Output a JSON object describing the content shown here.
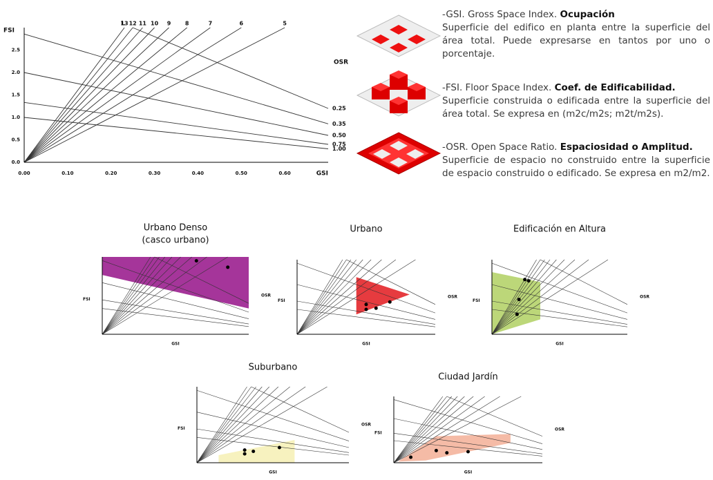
{
  "chart_data": [
    {
      "type": "spacemate",
      "x_label": "GSI",
      "y_label": "FSI",
      "l_label": "L",
      "osr_label": "OSR",
      "l_values": [
        13,
        12,
        11,
        10,
        9,
        8,
        7,
        6,
        5
      ],
      "osr_values": [
        {
          "value": 0.25,
          "label": "0.25"
        },
        {
          "value": 0.35,
          "label": "0.35"
        },
        {
          "value": 0.5,
          "label": "0.50"
        },
        {
          "value": 0.75,
          "label": "0.75"
        },
        {
          "value": 1,
          "label": "1.00"
        }
      ],
      "xlim": [
        0,
        0.7
      ],
      "ylim": [
        0,
        3
      ],
      "xticks": [
        {
          "value": 0,
          "label": "0.00"
        },
        {
          "value": 0.1,
          "label": "0.10"
        },
        {
          "value": 0.2,
          "label": "0.20"
        },
        {
          "value": 0.3,
          "label": "0.30"
        },
        {
          "value": 0.4,
          "label": "0.40"
        },
        {
          "value": 0.5,
          "label": "0.50"
        },
        {
          "value": 0.6,
          "label": "0.60"
        }
      ],
      "yticks": [
        {
          "value": 0,
          "label": "0.0"
        },
        {
          "value": 0.5,
          "label": "0.5"
        },
        {
          "value": 1,
          "label": "1.0"
        },
        {
          "value": 1.5,
          "label": "1.5"
        },
        {
          "value": 2,
          "label": "2.0"
        },
        {
          "value": 2.5,
          "label": "2.5"
        }
      ]
    },
    {
      "type": "spacemate",
      "title": "Urbano Denso",
      "subtitle": "(casco urbano)",
      "color": "#9b1f8f",
      "xlim": [
        0,
        0.7
      ],
      "ylim": [
        0,
        3
      ],
      "region_x": [
        0,
        0.7,
        0.7,
        0
      ],
      "region_y": [
        3,
        3,
        1.0,
        2.3
      ],
      "points_x": [
        0.45,
        0.6
      ],
      "points_y": [
        2.85,
        2.6
      ]
    },
    {
      "type": "spacemate",
      "title": "Urbano",
      "color": "#e3262a",
      "xlim": [
        0,
        0.7
      ],
      "ylim": [
        0,
        3
      ],
      "region_x": [
        0.3,
        0.57,
        0.3
      ],
      "region_y": [
        2.3,
        1.6,
        0.8
      ],
      "points_x": [
        0.35,
        0.35,
        0.4,
        0.47
      ],
      "points_y": [
        1.2,
        1.0,
        1.05,
        1.3
      ]
    },
    {
      "type": "spacemate",
      "title": "Edificación en Altura",
      "color": "#b5d36a",
      "xlim": [
        0,
        0.7
      ],
      "ylim": [
        0,
        3
      ],
      "region_x": [
        0,
        0.25,
        0.25,
        0
      ],
      "region_y": [
        2.5,
        2.1,
        0.6,
        0
      ],
      "points_x": [
        0.17,
        0.19,
        0.14,
        0.13
      ],
      "points_y": [
        2.2,
        2.15,
        1.4,
        0.8
      ]
    },
    {
      "type": "spacemate",
      "title": "Suburbano",
      "color": "#f6f1b8",
      "xlim": [
        0,
        0.7
      ],
      "ylim": [
        0,
        3
      ],
      "region_x": [
        0.1,
        0.45,
        0.45,
        0.1
      ],
      "region_y": [
        0,
        0,
        0.9,
        0.3
      ],
      "points_x": [
        0.22,
        0.22,
        0.26,
        0.38
      ],
      "points_y": [
        0.5,
        0.35,
        0.45,
        0.6
      ]
    },
    {
      "type": "spacemate",
      "title": "Ciudad Jardín",
      "color": "#f4b49c",
      "xlim": [
        0,
        0.7
      ],
      "ylim": [
        0,
        3
      ],
      "region_x": [
        0.02,
        0.2,
        0.55,
        0.55,
        0.15
      ],
      "region_y": [
        0.05,
        1.2,
        1.3,
        0.9,
        0.1
      ],
      "points_x": [
        0.08,
        0.2,
        0.25,
        0.35
      ],
      "points_y": [
        0.25,
        0.55,
        0.45,
        0.5
      ]
    }
  ],
  "definitions": [
    {
      "prefix": "-GSI. Gross Space Index. ",
      "term": "Ocupación",
      "text": "Superficie del edifico en planta entre la superficie del área total. Puede expresarse en tantos por uno o porcentaje."
    },
    {
      "prefix": "-FSI. Floor Space Index. ",
      "term": "Coef. de Edificabilidad.",
      "text": "Superficie construida o edificada entre la superficie del área total. Se expresa en (m2c/m2s; m2t/m2s)."
    },
    {
      "prefix": "-OSR. Open Space Ratio. ",
      "term": "Espaciosidad o Amplitud.",
      "text": "Superficie de espacio no construido entre la superficie de espacio construido o edificado. Se expresa en m2/m2."
    }
  ]
}
